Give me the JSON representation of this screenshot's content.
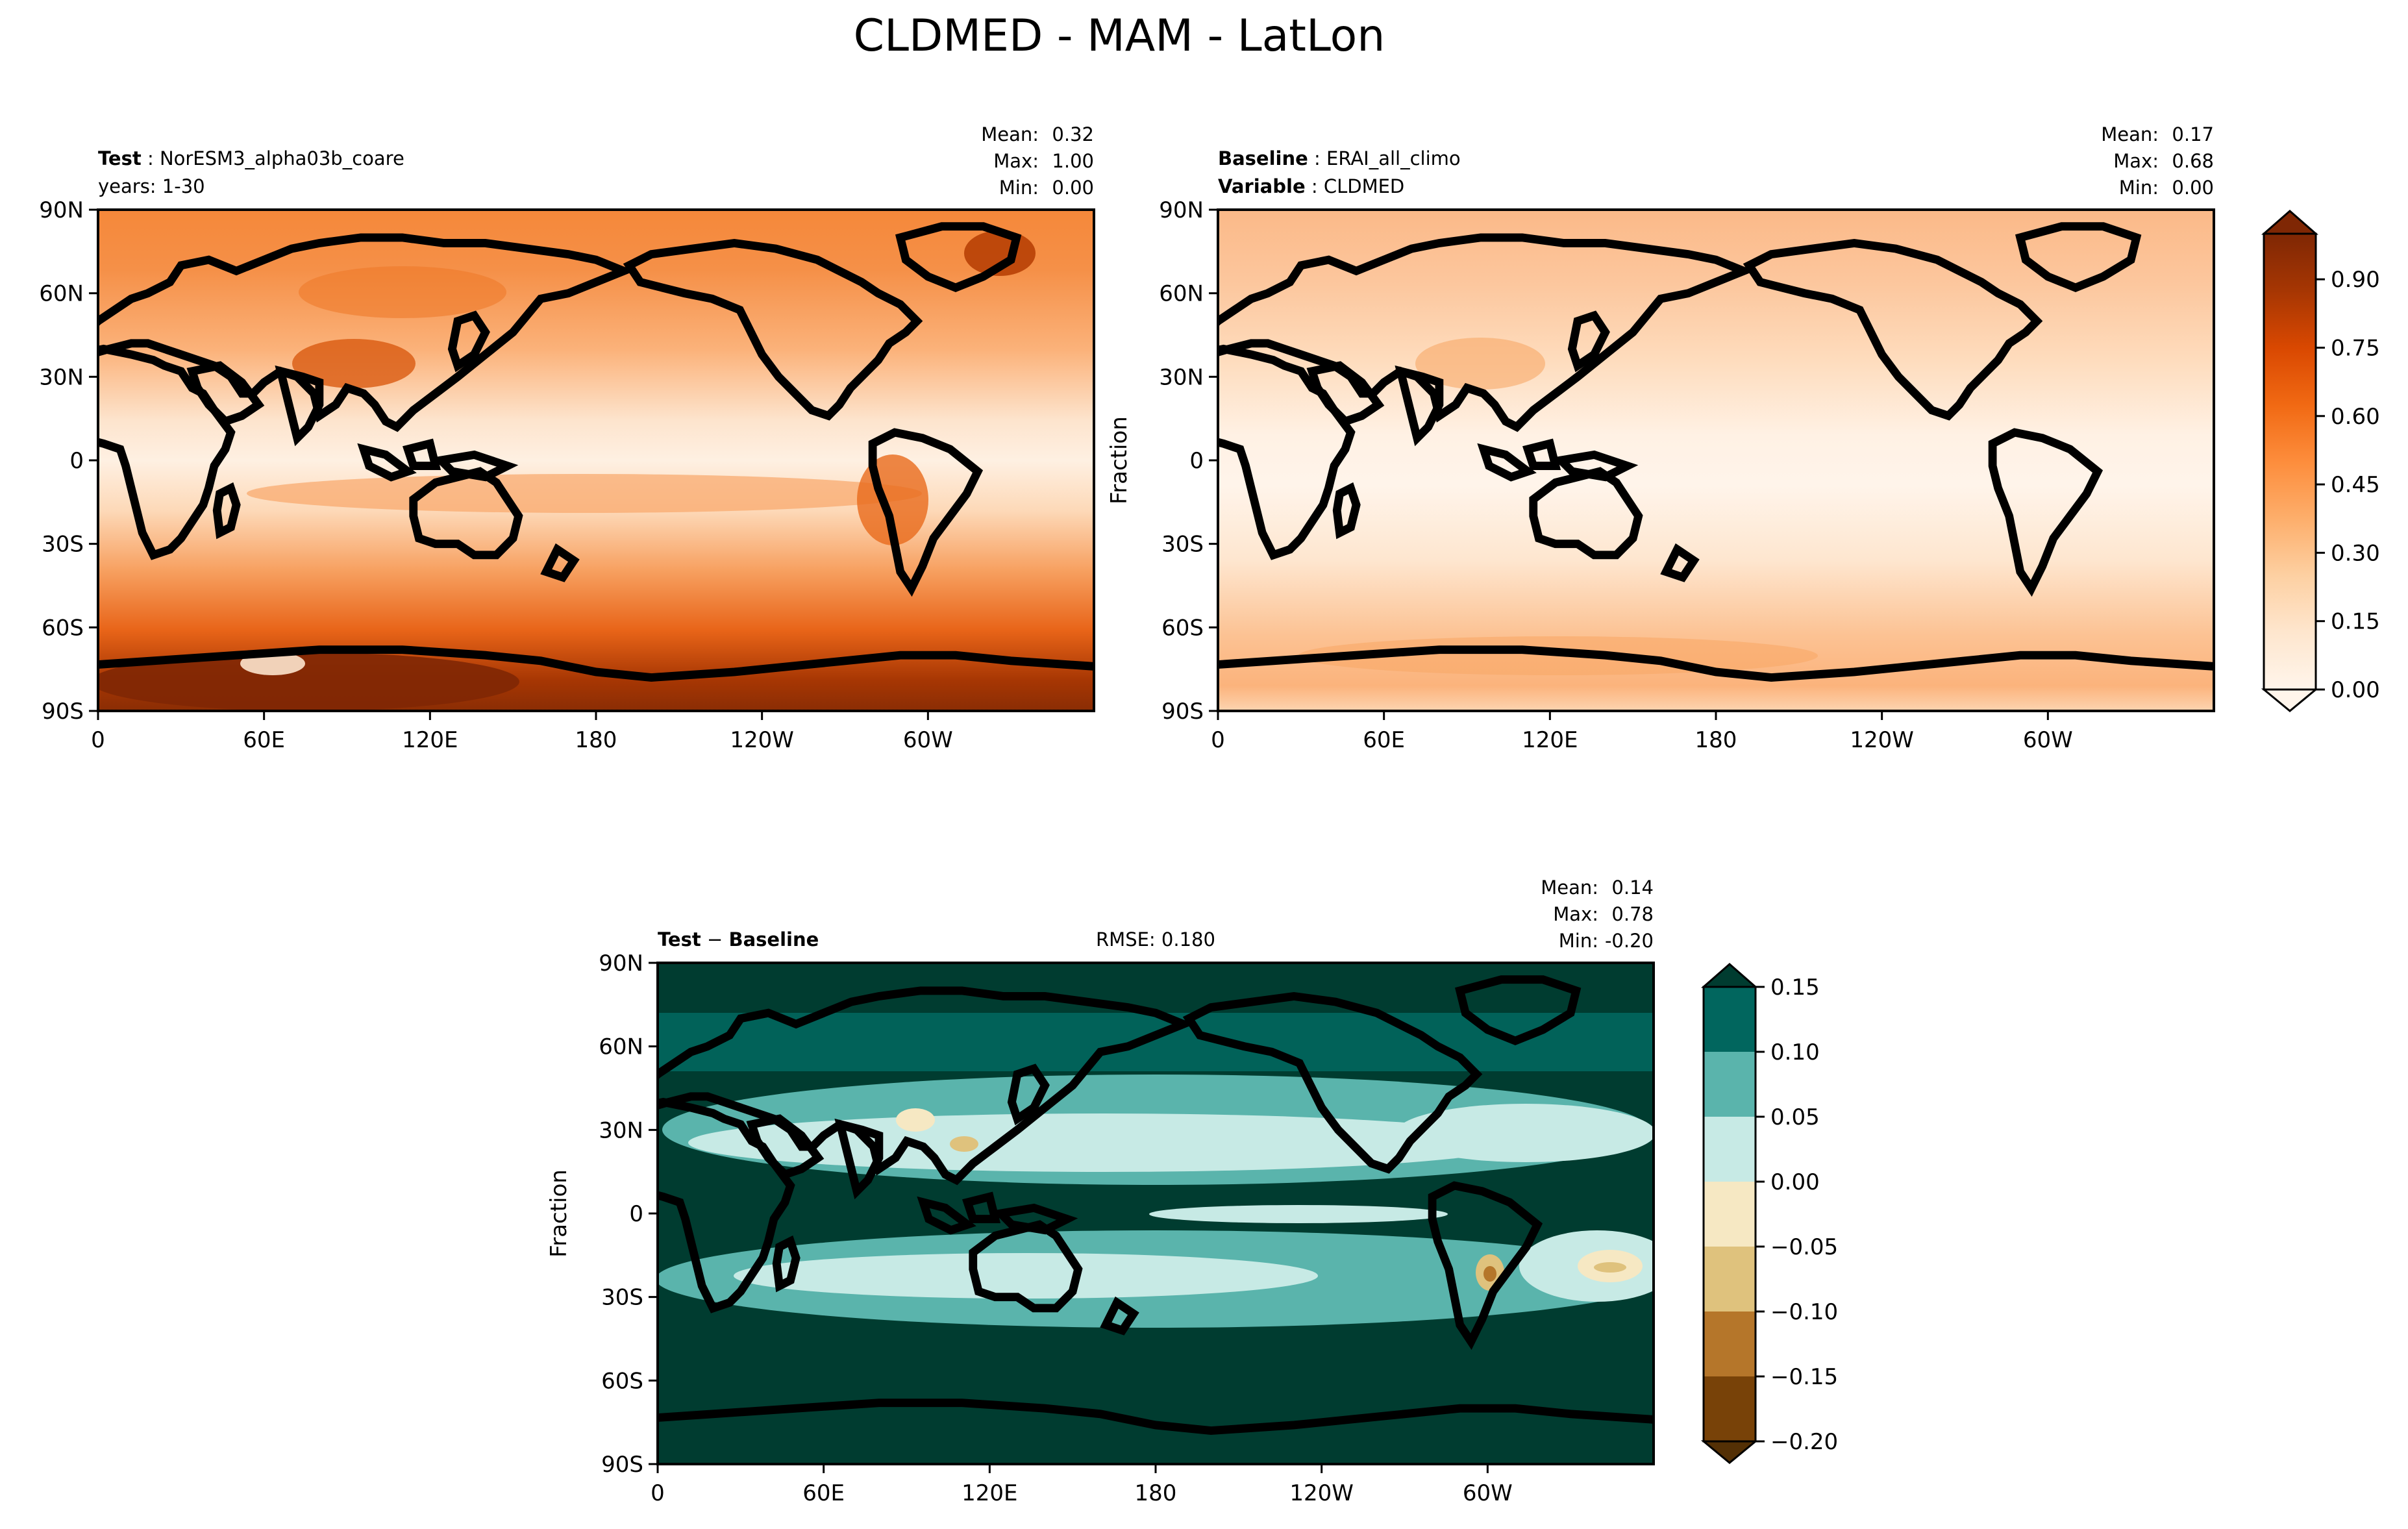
{
  "figure": {
    "title": "CLDMED - MAM - LatLon"
  },
  "chart_data": [
    {
      "type": "heatmap",
      "name": "test-panel",
      "left_label_bold": "Test",
      "left_label_value": "NorESM3_alpha03b_coare",
      "left_label_line2": "years: 1-30",
      "stats": {
        "mean_label": "Mean:",
        "mean": "0.32",
        "max_label": "Max:",
        "max": "1.00",
        "min_label": "Min:",
        "min": "0.00"
      },
      "ylabel": "",
      "x_ticks": [
        "0",
        "60E",
        "120E",
        "180",
        "120W",
        "60W"
      ],
      "y_ticks": [
        "90N",
        "60N",
        "30N",
        "0",
        "30S",
        "60S",
        "90S"
      ],
      "xlim": [
        0,
        360
      ],
      "ylim": [
        -90,
        90
      ],
      "colormap": "Oranges"
    },
    {
      "type": "heatmap",
      "name": "baseline-panel",
      "left_label_bold": "Baseline",
      "left_label_value": "ERAI_all_climo",
      "left_label_bold2": "Variable",
      "left_label_value2": "CLDMED",
      "stats": {
        "mean_label": "Mean:",
        "mean": "0.17",
        "max_label": "Max:",
        "max": "0.68",
        "min_label": "Min:",
        "min": "0.00"
      },
      "ylabel": "Fraction",
      "x_ticks": [
        "0",
        "60E",
        "120E",
        "180",
        "120W",
        "60W"
      ],
      "y_ticks": [
        "90N",
        "60N",
        "30N",
        "0",
        "30S",
        "60S",
        "90S"
      ],
      "xlim": [
        0,
        360
      ],
      "ylim": [
        -90,
        90
      ],
      "colormap": "Oranges",
      "colorbar_ticks": [
        "0.00",
        "0.15",
        "0.30",
        "0.45",
        "0.60",
        "0.75",
        "0.90"
      ],
      "colorbar_range": [
        0.0,
        1.0
      ]
    },
    {
      "type": "heatmap",
      "name": "diff-panel",
      "left_label_bold": "Test",
      "left_label_sep": " − ",
      "left_label_bold_b": "Baseline",
      "rmse": "RMSE: 0.180",
      "stats": {
        "mean_label": "Mean:",
        "mean": "0.14",
        "max_label": "Max:",
        "max": "0.78",
        "min_label": "Min:",
        "min": "-0.20"
      },
      "ylabel": "Fraction",
      "x_ticks": [
        "0",
        "60E",
        "120E",
        "180",
        "120W",
        "60W"
      ],
      "y_ticks": [
        "90N",
        "60N",
        "30N",
        "0",
        "30S",
        "60S",
        "90S"
      ],
      "xlim": [
        0,
        360
      ],
      "ylim": [
        -90,
        90
      ],
      "colormap": "BrBG",
      "colorbar_ticks": [
        "0.15",
        "0.10",
        "0.05",
        "0.00",
        "−0.05",
        "−0.10",
        "−0.15",
        "−0.20"
      ],
      "colorbar_range": [
        -0.2,
        0.15
      ],
      "colorbar_colors": [
        "#01665e",
        "#5ab4ac",
        "#c7eae5",
        "#f6e8c3",
        "#dfc27d",
        "#b5762a",
        "#784208"
      ]
    }
  ],
  "palettes": {
    "oranges": [
      "#fff5eb",
      "#fee6ce",
      "#fdd0a2",
      "#fdae6b",
      "#fd8d3c",
      "#f16913",
      "#d94801",
      "#a63603",
      "#7f2704"
    ],
    "brbg_dark": "#003c30"
  }
}
